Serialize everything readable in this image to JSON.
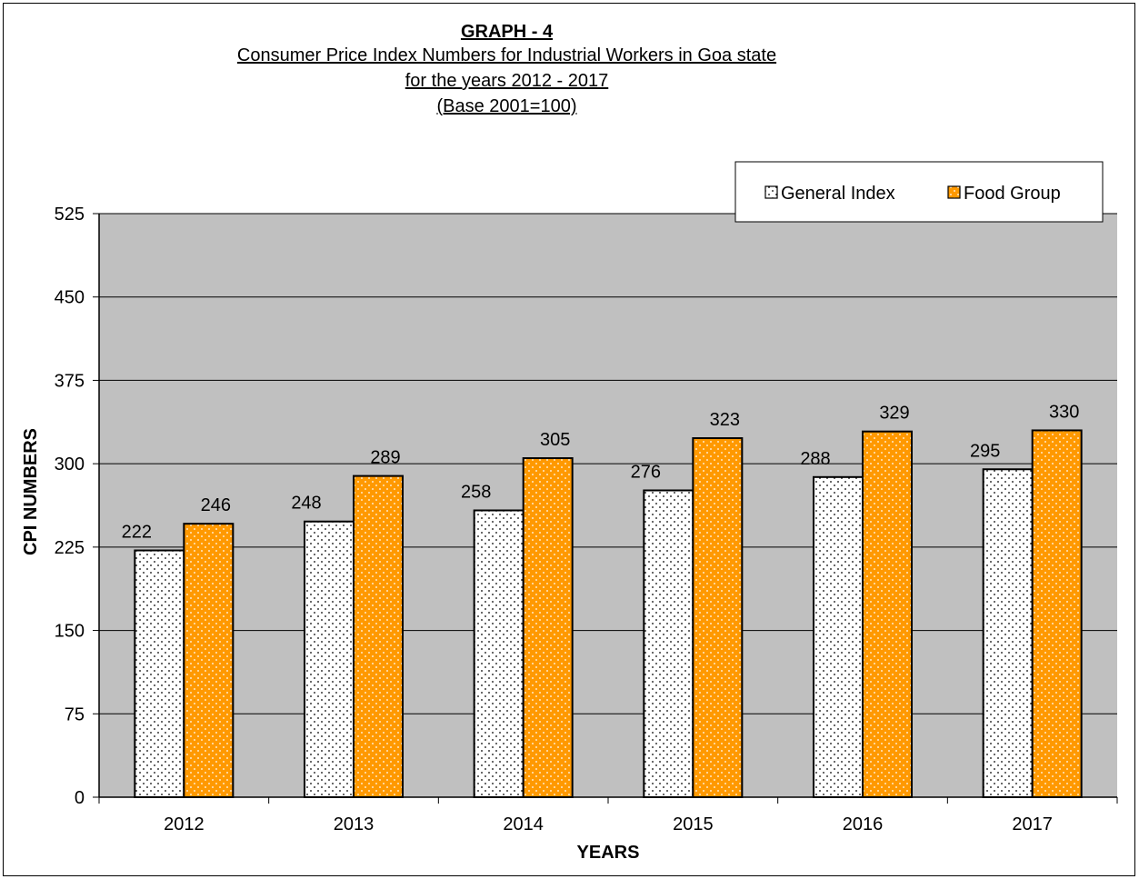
{
  "title_lines": [
    "GRAPH - 4",
    "Consumer Price Index Numbers for Industrial Workers in Goa state",
    "for the years 2012 - 2017",
    "(Base 2001=100)"
  ],
  "chart_data": {
    "type": "bar",
    "categories": [
      "2012",
      "2013",
      "2014",
      "2015",
      "2016",
      "2017"
    ],
    "series": [
      {
        "name": "General Index",
        "values": [
          222,
          248,
          258,
          276,
          288,
          295
        ],
        "color": "#ffffff",
        "pattern": "black-dots"
      },
      {
        "name": "Food Group",
        "values": [
          246,
          289,
          305,
          323,
          329,
          330
        ],
        "color": "#ff9900",
        "pattern": "white-dots"
      }
    ],
    "xlabel": "YEARS",
    "ylabel": "CPI NUMBERS",
    "ylim": [
      0,
      525
    ],
    "yticks": [
      0,
      75,
      150,
      225,
      300,
      375,
      450,
      525
    ],
    "grid": true,
    "legend_position": "top-right",
    "plot_background": "#c0c0c0"
  }
}
